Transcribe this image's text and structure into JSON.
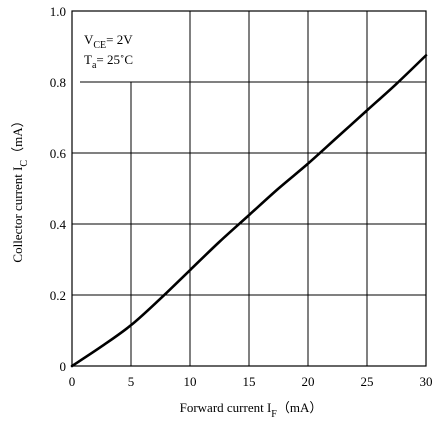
{
  "chart_data": {
    "type": "line",
    "xlabel": "Forward current I",
    "xlabel_sub": "F",
    "xlabel_unit": "（mA）",
    "ylabel": "Collector current I",
    "ylabel_sub": "C",
    "ylabel_unit": "（mA）",
    "xlim": [
      0,
      30
    ],
    "ylim": [
      0,
      1.0
    ],
    "x_ticks": [
      0,
      5,
      10,
      15,
      20,
      25,
      30
    ],
    "x_tick_labels": [
      "0",
      "5",
      "10",
      "15",
      "20",
      "25",
      "30"
    ],
    "y_ticks": [
      0,
      0.2,
      0.4,
      0.6,
      0.8,
      1.0
    ],
    "y_tick_labels": [
      "0",
      "0.2",
      "0.4",
      "0.6",
      "0.8",
      "1.0"
    ],
    "grid": true,
    "annotations": [
      {
        "main": "V",
        "sub": "CE",
        "rest": "= 2V"
      },
      {
        "main": "T",
        "sub": "a",
        "rest": "= 25˚C"
      }
    ],
    "series": [
      {
        "x": [
          0,
          2.5,
          5,
          7.5,
          10,
          12.5,
          15,
          17.5,
          20,
          22.5,
          25,
          27.5,
          30
        ],
        "y": [
          0,
          0.055,
          0.115,
          0.19,
          0.27,
          0.35,
          0.425,
          0.5,
          0.57,
          0.645,
          0.72,
          0.795,
          0.875
        ]
      }
    ]
  }
}
